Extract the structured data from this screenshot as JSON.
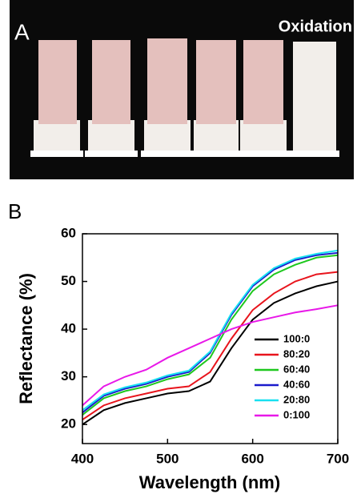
{
  "photo": {
    "label": "A",
    "caption": "Oxidation"
  },
  "panel_label": "B",
  "chart_data": {
    "type": "line",
    "x_label": "Wavelength (nm)",
    "y_label": "Reflectance (%)",
    "x": [
      400,
      425,
      450,
      475,
      500,
      525,
      550,
      575,
      600,
      625,
      650,
      675,
      700
    ],
    "series": [
      {
        "name": "100:0",
        "color": "#000000",
        "values": [
          20,
          23,
          24.5,
          25.5,
          26.5,
          27,
          29,
          36,
          42,
          45.5,
          47.5,
          49,
          50
        ]
      },
      {
        "name": "80:20",
        "color": "#e8141c",
        "values": [
          21,
          24,
          25.5,
          26.5,
          27.5,
          28,
          31,
          38,
          44,
          47.5,
          50,
          51.5,
          52
        ]
      },
      {
        "name": "60:40",
        "color": "#1ec81e",
        "values": [
          22,
          25.5,
          27,
          28,
          29.5,
          30.5,
          34,
          42,
          48,
          51.5,
          53.5,
          55,
          55.5
        ]
      },
      {
        "name": "40:60",
        "color": "#1a1acc",
        "values": [
          22.5,
          26,
          27.5,
          28.5,
          30,
          31,
          35,
          43,
          49,
          52.5,
          54.5,
          55.5,
          56
        ]
      },
      {
        "name": "20:80",
        "color": "#18e0f0",
        "values": [
          23,
          26.3,
          27.8,
          28.8,
          30.3,
          31.3,
          35.3,
          43.3,
          49.3,
          52.8,
          54.8,
          55.8,
          56.5
        ]
      },
      {
        "name": "0:100",
        "color": "#e818e8",
        "values": [
          24,
          28,
          30,
          31.5,
          34,
          36,
          38,
          40,
          41.5,
          42.5,
          43.5,
          44.2,
          45
        ]
      }
    ],
    "xlim": [
      400,
      700
    ],
    "ylim": [
      16,
      60
    ],
    "xticks": [
      400,
      500,
      600,
      700
    ],
    "yticks": [
      20,
      30,
      40,
      50,
      60
    ],
    "grid": false,
    "legend": "lower right"
  }
}
